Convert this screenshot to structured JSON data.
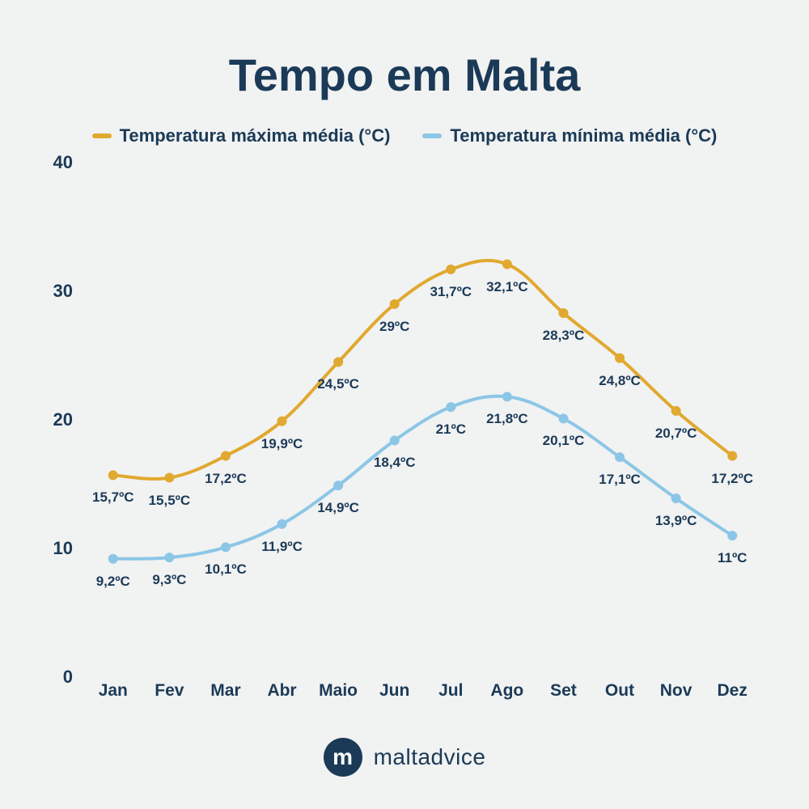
{
  "title": "Tempo em Malta",
  "chart": {
    "type": "line",
    "background_color": "#f1f2f2",
    "text_color": "#1b3a57",
    "title_fontsize": 56,
    "legend_fontsize": 22,
    "axis_fontsize": 22,
    "datalabel_fontsize": 17,
    "ylim": [
      0,
      40
    ],
    "ytick_step": 10,
    "yticks": [
      0,
      10,
      20,
      30,
      40
    ],
    "categories": [
      "Jan",
      "Fev",
      "Mar",
      "Abr",
      "Maio",
      "Jun",
      "Jul",
      "Ago",
      "Set",
      "Out",
      "Nov",
      "Dez"
    ],
    "series": [
      {
        "name": "Temperatura máxima média (°C)",
        "color": "#e0a92f",
        "line_width": 4,
        "marker_radius": 6,
        "values": [
          15.7,
          15.5,
          17.2,
          19.9,
          24.5,
          29.0,
          31.7,
          32.1,
          28.3,
          24.8,
          20.7,
          17.2
        ],
        "labels": [
          "15,7ºC",
          "15,5ºC",
          "17,2ºC",
          "19,9ºC",
          "24,5ºC",
          "29ºC",
          "31,7ºC",
          "32,1ºC",
          "28,3ºC",
          "24,8ºC",
          "20,7ºC",
          "17,2ºC"
        ]
      },
      {
        "name": "Temperatura mínima média (°C)",
        "color": "#8cc6e6",
        "line_width": 4,
        "marker_radius": 6,
        "values": [
          9.2,
          9.3,
          10.1,
          11.9,
          14.9,
          18.4,
          21.0,
          21.8,
          20.1,
          17.1,
          13.9,
          11.0
        ],
        "labels": [
          "9,2ºC",
          "9,3ºC",
          "10,1ºC",
          "11,9ºC",
          "14,9ºC",
          "18,4ºC",
          "21ºC",
          "21,8ºC",
          "20,1ºC",
          "17,1ºC",
          "13,9ºC",
          "11ºC"
        ]
      }
    ]
  },
  "brand": {
    "initial": "m",
    "name": "maltadvice",
    "circle_bg": "#1b3a57",
    "circle_fg": "#ffffff"
  }
}
